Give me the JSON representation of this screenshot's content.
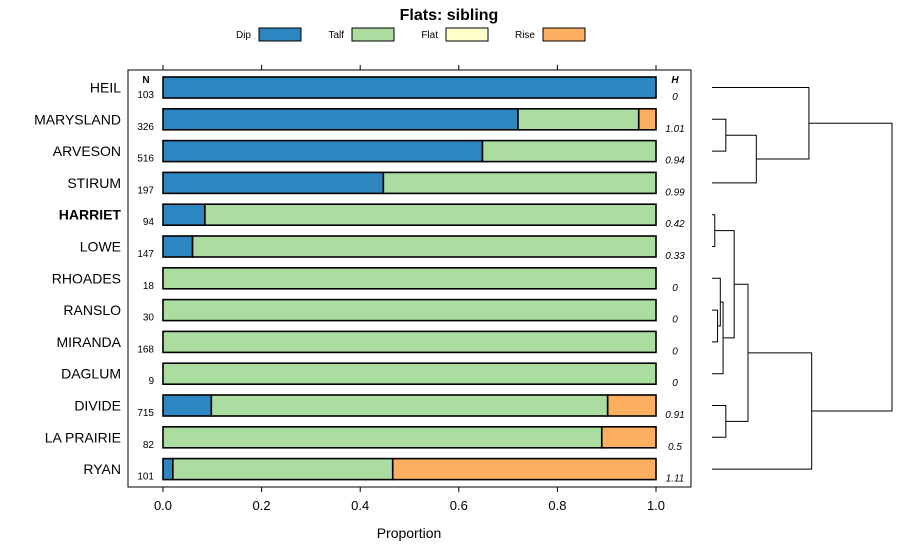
{
  "chart_data": {
    "type": "bar",
    "stacked": true,
    "orientation": "horizontal",
    "title": "Flats: sibling",
    "xlabel": "Proportion",
    "xlim": [
      0,
      1
    ],
    "xticks": [
      "0.0",
      "0.2",
      "0.4",
      "0.6",
      "0.8",
      "1.0"
    ],
    "n_header": "N",
    "h_header": "H",
    "legend": [
      {
        "name": "Dip",
        "color": "#2e86c1"
      },
      {
        "name": "Talf",
        "color": "#acdda0"
      },
      {
        "name": "Flat",
        "color": "#ffffcc"
      },
      {
        "name": "Rise",
        "color": "#fdae61"
      }
    ],
    "rows": [
      {
        "label": "HEIL",
        "bold": false,
        "n": "103",
        "h": "0",
        "values": [
          1.0,
          0,
          0,
          0
        ]
      },
      {
        "label": "MARYSLAND",
        "bold": false,
        "n": "326",
        "h": "1.01",
        "values": [
          0.72,
          0.245,
          0,
          0.035
        ]
      },
      {
        "label": "ARVESON",
        "bold": false,
        "n": "516",
        "h": "0.94",
        "values": [
          0.648,
          0.352,
          0,
          0
        ]
      },
      {
        "label": "STIRUM",
        "bold": false,
        "n": "197",
        "h": "0.99",
        "values": [
          0.447,
          0.553,
          0,
          0
        ]
      },
      {
        "label": "HARRIET",
        "bold": true,
        "n": "94",
        "h": "0.42",
        "values": [
          0.085,
          0.915,
          0,
          0
        ]
      },
      {
        "label": "LOWE",
        "bold": false,
        "n": "147",
        "h": "0.33",
        "values": [
          0.06,
          0.94,
          0,
          0
        ]
      },
      {
        "label": "RHOADES",
        "bold": false,
        "n": "18",
        "h": "0",
        "values": [
          0,
          1.0,
          0,
          0
        ]
      },
      {
        "label": "RANSLO",
        "bold": false,
        "n": "30",
        "h": "0",
        "values": [
          0,
          1.0,
          0,
          0
        ]
      },
      {
        "label": "MIRANDA",
        "bold": false,
        "n": "168",
        "h": "0",
        "values": [
          0,
          1.0,
          0,
          0
        ]
      },
      {
        "label": "DAGLUM",
        "bold": false,
        "n": "9",
        "h": "0",
        "values": [
          0,
          1.0,
          0,
          0
        ]
      },
      {
        "label": "DIVIDE",
        "bold": false,
        "n": "715",
        "h": "0.91",
        "values": [
          0.098,
          0.804,
          0,
          0.098
        ]
      },
      {
        "label": "LA PRAIRIE",
        "bold": false,
        "n": "82",
        "h": "0.5",
        "values": [
          0,
          0.89,
          0,
          0.11
        ]
      },
      {
        "label": "RYAN",
        "bold": false,
        "n": "101",
        "h": "1.11",
        "values": [
          0.02,
          0.446,
          0,
          0.534
        ]
      }
    ],
    "dendrogram": {
      "merges": [
        {
          "id": "m1",
          "children": [
            1,
            2
          ],
          "height": 0.05
        },
        {
          "id": "m2",
          "children": [
            "m1",
            3
          ],
          "height": 0.16
        },
        {
          "id": "m3",
          "children": [
            0,
            "m2"
          ],
          "height": 0.35
        },
        {
          "id": "m4",
          "children": [
            4,
            5
          ],
          "height": 0.01
        },
        {
          "id": "m5",
          "children": [
            7,
            8
          ],
          "height": 0.02
        },
        {
          "id": "m6",
          "children": [
            6,
            "m5"
          ],
          "height": 0.03
        },
        {
          "id": "m7",
          "children": [
            "m6",
            9
          ],
          "height": 0.04
        },
        {
          "id": "m8",
          "children": [
            "m4",
            "m7"
          ],
          "height": 0.08
        },
        {
          "id": "m9",
          "children": [
            10,
            11
          ],
          "height": 0.05
        },
        {
          "id": "m10",
          "children": [
            "m8",
            "m9"
          ],
          "height": 0.13
        },
        {
          "id": "m11",
          "children": [
            "m10",
            12
          ],
          "height": 0.36
        },
        {
          "id": "m12",
          "children": [
            "m3",
            "m11"
          ],
          "height": 0.65
        }
      ]
    }
  }
}
